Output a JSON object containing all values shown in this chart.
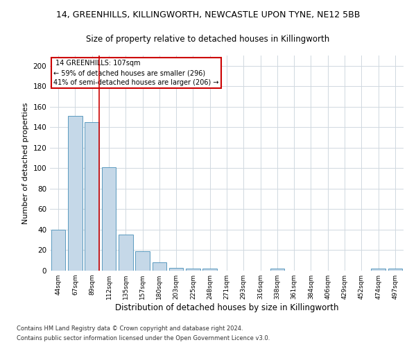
{
  "title1": "14, GREENHILLS, KILLINGWORTH, NEWCASTLE UPON TYNE, NE12 5BB",
  "title2": "Size of property relative to detached houses in Killingworth",
  "xlabel": "Distribution of detached houses by size in Killingworth",
  "ylabel": "Number of detached properties",
  "categories": [
    "44sqm",
    "67sqm",
    "89sqm",
    "112sqm",
    "135sqm",
    "157sqm",
    "180sqm",
    "203sqm",
    "225sqm",
    "248sqm",
    "271sqm",
    "293sqm",
    "316sqm",
    "338sqm",
    "361sqm",
    "384sqm",
    "406sqm",
    "429sqm",
    "452sqm",
    "474sqm",
    "497sqm"
  ],
  "values": [
    40,
    151,
    145,
    101,
    35,
    19,
    8,
    3,
    2,
    2,
    0,
    0,
    0,
    2,
    0,
    0,
    0,
    0,
    0,
    2,
    2
  ],
  "bar_color": "#c5d8e8",
  "bar_edge_color": "#5a9abf",
  "annotation_text_line1": "14 GREENHILLS: 107sqm",
  "annotation_text_line2": "← 59% of detached houses are smaller (296)",
  "annotation_text_line3": "41% of semi-detached houses are larger (206) →",
  "annotation_box_color": "#ffffff",
  "annotation_box_edge": "#cc0000",
  "ylim": [
    0,
    210
  ],
  "yticks": [
    0,
    20,
    40,
    60,
    80,
    100,
    120,
    140,
    160,
    180,
    200
  ],
  "footer1": "Contains HM Land Registry data © Crown copyright and database right 2024.",
  "footer2": "Contains public sector information licensed under the Open Government Licence v3.0.",
  "bg_color": "#ffffff",
  "grid_color": "#d0d8e0",
  "title1_fontsize": 9,
  "title2_fontsize": 8.5,
  "xlabel_fontsize": 8.5,
  "ylabel_fontsize": 8
}
